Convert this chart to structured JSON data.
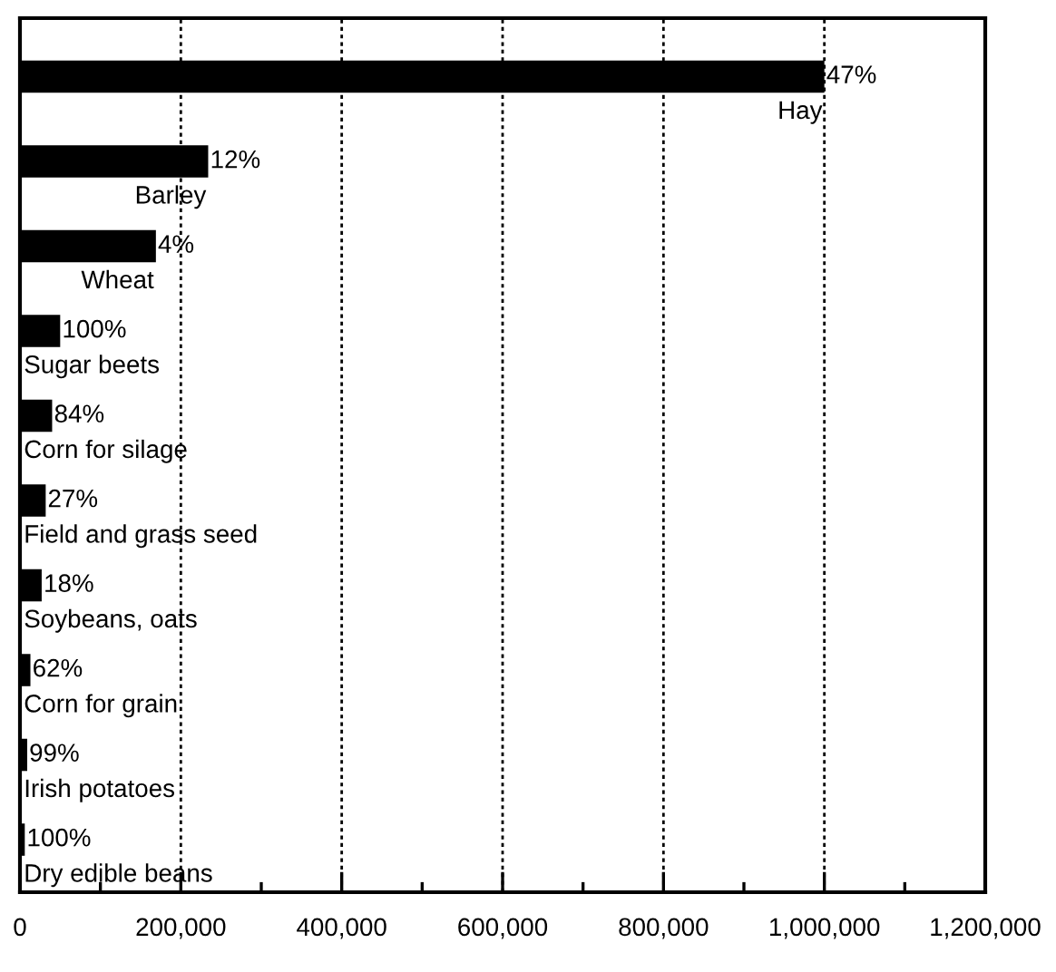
{
  "chart_data": {
    "type": "bar",
    "orientation": "horizontal",
    "categories": [
      "Hay",
      "Barley",
      "Wheat",
      "Sugar beets",
      "Corn for silage",
      "Field and grass seed",
      "Soybeans, oats",
      "Corn for grain",
      "Irish potatoes",
      "Dry edible beans"
    ],
    "values": [
      1000000,
      234000,
      169000,
      50000,
      40000,
      32000,
      27000,
      13000,
      9000,
      6000
    ],
    "annotations": [
      "47%",
      "12%",
      "4%",
      "100%",
      "84%",
      "27%",
      "18%",
      "62%",
      "99%",
      "100%"
    ],
    "color": "#000000",
    "xlim": [
      0,
      1200000
    ],
    "xticks": [
      0,
      {
        "value": 100000,
        "label": null
      },
      {
        "value": 200000,
        "label": "200,000"
      },
      {
        "value": 300000,
        "label": null
      },
      {
        "value": 400000,
        "label": "400,000"
      },
      {
        "value": 500000,
        "label": null
      },
      {
        "value": 600000,
        "label": "600,000"
      },
      {
        "value": 700000,
        "label": null
      },
      {
        "value": 800000,
        "label": "800,000"
      },
      {
        "value": 900000,
        "label": null
      },
      {
        "value": 1000000,
        "label": "1,000,000"
      },
      {
        "value": 1100000,
        "label": null
      },
      {
        "value": 1200000,
        "label": "1,200,000"
      }
    ],
    "grid": "x"
  }
}
